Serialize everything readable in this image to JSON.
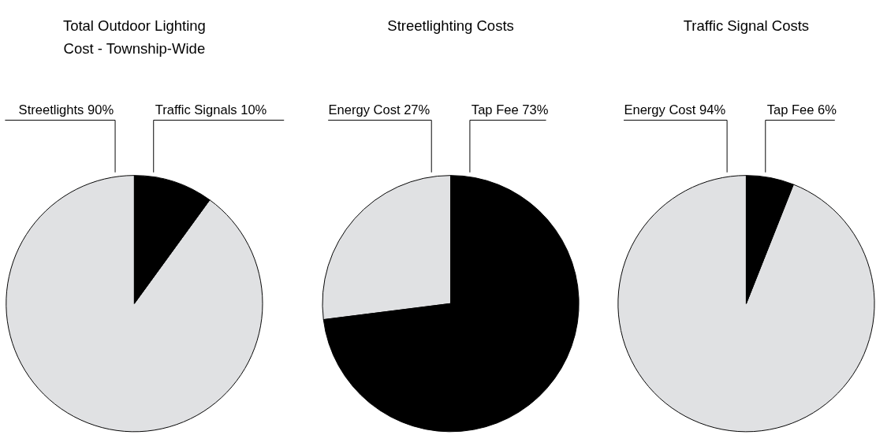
{
  "chart_data": [
    {
      "type": "pie",
      "title": "Total Outdoor Lighting\nCost - Township-Wide",
      "categories": [
        "Streetlights",
        "Traffic Signals"
      ],
      "values": [
        90,
        10
      ],
      "colors": [
        "#e0e1e3",
        "#000000"
      ],
      "value_labels": [
        "90%",
        "10%"
      ]
    },
    {
      "type": "pie",
      "title": "Streetlighting Costs",
      "categories": [
        "Energy Cost",
        "Tap Fee"
      ],
      "values": [
        27,
        73
      ],
      "colors": [
        "#e0e1e3",
        "#000000"
      ],
      "value_labels": [
        "27%",
        "73%"
      ]
    },
    {
      "type": "pie",
      "title": "Traffic Signal Costs",
      "categories": [
        "Energy Cost",
        "Tap Fee"
      ],
      "values": [
        94,
        6
      ],
      "colors": [
        "#e0e1e3",
        "#000000"
      ],
      "value_labels": [
        "94%",
        "6%"
      ]
    }
  ]
}
